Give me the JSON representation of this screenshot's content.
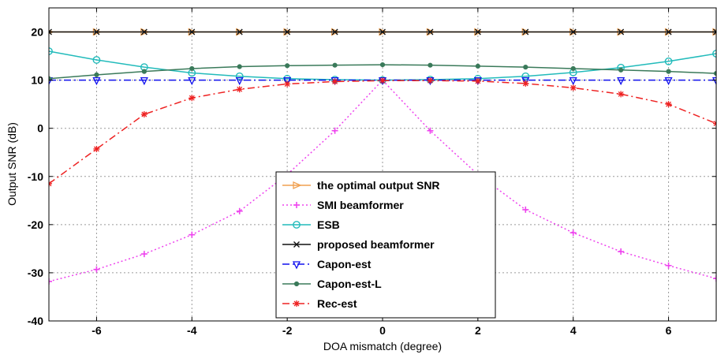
{
  "chart_data": {
    "type": "line",
    "title": "",
    "xlabel": "DOA mismatch (degree)",
    "ylabel": "Output SNR (dB)",
    "xlim": [
      -7,
      7
    ],
    "ylim": [
      -40,
      25
    ],
    "xticks": [
      -6,
      -4,
      -2,
      0,
      2,
      4,
      6
    ],
    "yticks": [
      -40,
      -30,
      -20,
      -10,
      0,
      10,
      20
    ],
    "grid": true,
    "legend_position": "bottom-center",
    "series": [
      {
        "name": "the optimal output SNR",
        "color": "#f0a050",
        "line_style": "solid",
        "marker": "triangle-right",
        "x": [
          -7,
          -6,
          -5,
          -4,
          -3,
          -2,
          -1,
          0,
          1,
          2,
          3,
          4,
          5,
          6,
          7
        ],
        "y": [
          20,
          20,
          20,
          20,
          20,
          20,
          20,
          20,
          20,
          20,
          20,
          20,
          20,
          20,
          20
        ]
      },
      {
        "name": "SMI beamformer",
        "color": "#ee44ee",
        "line_style": "dotted",
        "marker": "plus",
        "x": [
          -7,
          -6,
          -5,
          -4,
          -3,
          -2,
          -1,
          0,
          1,
          2,
          3,
          4,
          5,
          6,
          7
        ],
        "y": [
          -31.8,
          -29.3,
          -26.1,
          -22.1,
          -17.2,
          -9.6,
          -0.5,
          10,
          -0.5,
          -9.6,
          -16.9,
          -21.7,
          -25.6,
          -28.5,
          -31.2
        ]
      },
      {
        "name": "ESB",
        "color": "#22bbbb",
        "line_style": "solid",
        "marker": "circle",
        "x": [
          -7,
          -6,
          -5,
          -4,
          -3,
          -2,
          -1,
          0,
          1,
          2,
          3,
          4,
          5,
          6,
          7
        ],
        "y": [
          16,
          14.2,
          12.7,
          11.5,
          10.8,
          10.3,
          10.1,
          10,
          10.1,
          10.3,
          10.8,
          11.6,
          12.6,
          13.9,
          15.5
        ]
      },
      {
        "name": "proposed beamformer",
        "color": "#111111",
        "line_style": "solid",
        "marker": "x",
        "x": [
          -7,
          -6,
          -5,
          -4,
          -3,
          -2,
          -1,
          0,
          1,
          2,
          3,
          4,
          5,
          6,
          7
        ],
        "y": [
          20,
          20,
          20,
          20,
          20,
          20,
          20,
          20,
          20,
          20,
          20,
          20,
          20,
          20,
          20
        ]
      },
      {
        "name": "Capon-est",
        "color": "#1111ee",
        "line_style": "dashdot",
        "marker": "triangle-down",
        "x": [
          -7,
          -6,
          -5,
          -4,
          -3,
          -2,
          -1,
          0,
          1,
          2,
          3,
          4,
          5,
          6,
          7
        ],
        "y": [
          10,
          10,
          10,
          10,
          10,
          10,
          10,
          10,
          10,
          10,
          10,
          10,
          10,
          10,
          10
        ]
      },
      {
        "name": "Capon-est-L",
        "color": "#3a7a5a",
        "line_style": "solid",
        "marker": "dot",
        "x": [
          -7,
          -6,
          -5,
          -4,
          -3,
          -2,
          -1,
          0,
          1,
          2,
          3,
          4,
          5,
          6,
          7
        ],
        "y": [
          10.3,
          11.1,
          11.8,
          12.4,
          12.8,
          13.0,
          13.1,
          13.2,
          13.1,
          12.9,
          12.7,
          12.4,
          12.1,
          11.8,
          11.4
        ]
      },
      {
        "name": "Rec-est",
        "color": "#ee2222",
        "line_style": "dashdot",
        "marker": "star",
        "x": [
          -7,
          -6,
          -5,
          -4,
          -3,
          -2,
          -1,
          0,
          1,
          2,
          3,
          4,
          5,
          6,
          7
        ],
        "y": [
          -11.5,
          -4.3,
          2.9,
          6.3,
          8.1,
          9.2,
          9.7,
          9.9,
          9.9,
          9.8,
          9.3,
          8.4,
          7.1,
          5,
          1
        ]
      }
    ]
  }
}
